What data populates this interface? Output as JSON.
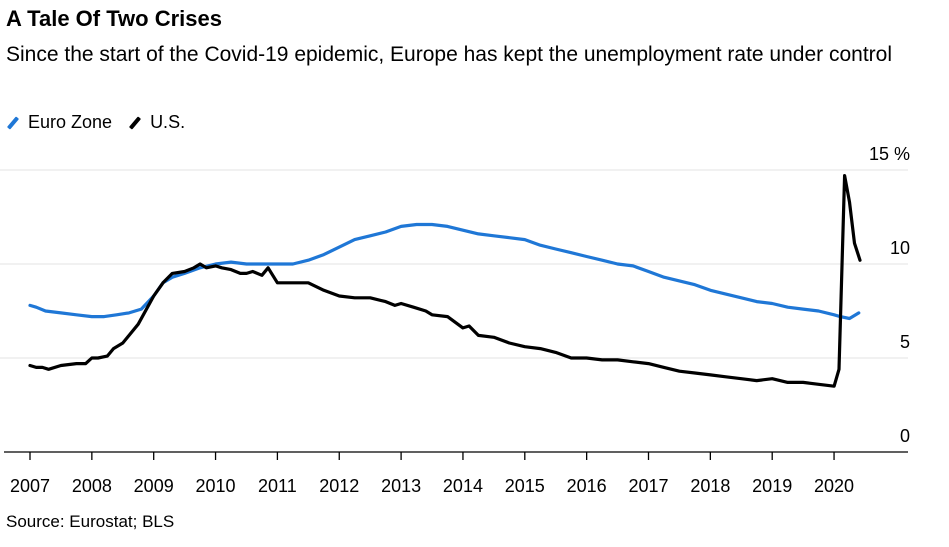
{
  "header": {
    "title": "A Tale Of Two Crises",
    "subtitle": "Since the start of the Covid-19 epidemic, Europe has kept the unemployment rate under control"
  },
  "legend": [
    {
      "label": "Euro Zone",
      "color": "#1f77d6"
    },
    {
      "label": "U.S.",
      "color": "#000000"
    }
  ],
  "source": "Source: Eurostat; BLS",
  "chart_data": {
    "type": "line",
    "title": "A Tale Of Two Crises",
    "xlabel": "",
    "ylabel": "%",
    "xlim": [
      2007,
      2020.9
    ],
    "ylim": [
      0,
      15
    ],
    "y_ticks": [
      {
        "value": 0,
        "label": "0"
      },
      {
        "value": 5,
        "label": "5"
      },
      {
        "value": 10,
        "label": "10"
      },
      {
        "value": 15,
        "label": "15 %"
      }
    ],
    "x_ticks": [
      2007,
      2008,
      2009,
      2010,
      2011,
      2012,
      2013,
      2014,
      2015,
      2016,
      2017,
      2018,
      2019,
      2020
    ],
    "x_tick_labels": [
      "2007",
      "2008",
      "2009",
      "2010",
      "2011",
      "2012",
      "2013",
      "2014",
      "2015",
      "2016",
      "2017",
      "2018",
      "2019",
      "2020"
    ],
    "grid": true,
    "series": [
      {
        "name": "Euro Zone",
        "color": "#1f77d6",
        "x": [
          2007.0,
          2007.1,
          2007.25,
          2007.5,
          2007.75,
          2008.0,
          2008.2,
          2008.4,
          2008.6,
          2008.8,
          2009.0,
          2009.15,
          2009.3,
          2009.5,
          2009.75,
          2010.0,
          2010.25,
          2010.5,
          2010.75,
          2011.0,
          2011.25,
          2011.5,
          2011.75,
          2012.0,
          2012.25,
          2012.5,
          2012.75,
          2013.0,
          2013.25,
          2013.5,
          2013.75,
          2014.0,
          2014.25,
          2014.5,
          2014.75,
          2015.0,
          2015.25,
          2015.5,
          2015.75,
          2016.0,
          2016.25,
          2016.5,
          2016.75,
          2017.0,
          2017.25,
          2017.5,
          2017.75,
          2018.0,
          2018.25,
          2018.5,
          2018.75,
          2019.0,
          2019.25,
          2019.5,
          2019.75,
          2020.0,
          2020.1,
          2020.25,
          2020.4
        ],
        "values": [
          7.8,
          7.7,
          7.5,
          7.4,
          7.3,
          7.2,
          7.2,
          7.3,
          7.4,
          7.6,
          8.3,
          9.0,
          9.3,
          9.5,
          9.8,
          10.0,
          10.1,
          10.0,
          10.0,
          10.0,
          10.0,
          10.2,
          10.5,
          10.9,
          11.3,
          11.5,
          11.7,
          12.0,
          12.1,
          12.1,
          12.0,
          11.8,
          11.6,
          11.5,
          11.4,
          11.3,
          11.0,
          10.8,
          10.6,
          10.4,
          10.2,
          10.0,
          9.9,
          9.6,
          9.3,
          9.1,
          8.9,
          8.6,
          8.4,
          8.2,
          8.0,
          7.9,
          7.7,
          7.6,
          7.5,
          7.3,
          7.2,
          7.1,
          7.4
        ]
      },
      {
        "name": "U.S.",
        "color": "#000000",
        "x": [
          2007.0,
          2007.1,
          2007.2,
          2007.3,
          2007.5,
          2007.75,
          2007.9,
          2008.0,
          2008.1,
          2008.25,
          2008.35,
          2008.5,
          2008.75,
          2009.0,
          2009.15,
          2009.3,
          2009.5,
          2009.65,
          2009.75,
          2009.85,
          2010.0,
          2010.1,
          2010.25,
          2010.4,
          2010.5,
          2010.6,
          2010.75,
          2010.85,
          2011.0,
          2011.25,
          2011.5,
          2011.75,
          2012.0,
          2012.25,
          2012.5,
          2012.75,
          2012.9,
          2013.0,
          2013.2,
          2013.4,
          2013.5,
          2013.75,
          2014.0,
          2014.1,
          2014.25,
          2014.5,
          2014.75,
          2015.0,
          2015.25,
          2015.5,
          2015.75,
          2016.0,
          2016.25,
          2016.5,
          2016.75,
          2017.0,
          2017.25,
          2017.5,
          2017.75,
          2018.0,
          2018.25,
          2018.5,
          2018.75,
          2019.0,
          2019.25,
          2019.5,
          2019.75,
          2020.0,
          2020.08,
          2020.17,
          2020.25,
          2020.33,
          2020.42
        ],
        "values": [
          4.6,
          4.5,
          4.5,
          4.4,
          4.6,
          4.7,
          4.7,
          5.0,
          5.0,
          5.1,
          5.5,
          5.8,
          6.8,
          8.3,
          9.0,
          9.5,
          9.6,
          9.8,
          10.0,
          9.8,
          9.9,
          9.8,
          9.7,
          9.5,
          9.5,
          9.6,
          9.4,
          9.8,
          9.0,
          9.0,
          9.0,
          8.6,
          8.3,
          8.2,
          8.2,
          8.0,
          7.8,
          7.9,
          7.7,
          7.5,
          7.3,
          7.2,
          6.6,
          6.7,
          6.2,
          6.1,
          5.8,
          5.6,
          5.5,
          5.3,
          5.0,
          5.0,
          4.9,
          4.9,
          4.8,
          4.7,
          4.5,
          4.3,
          4.2,
          4.1,
          4.0,
          3.9,
          3.8,
          3.9,
          3.7,
          3.7,
          3.6,
          3.5,
          4.4,
          14.7,
          13.3,
          11.1,
          10.2
        ]
      }
    ]
  }
}
